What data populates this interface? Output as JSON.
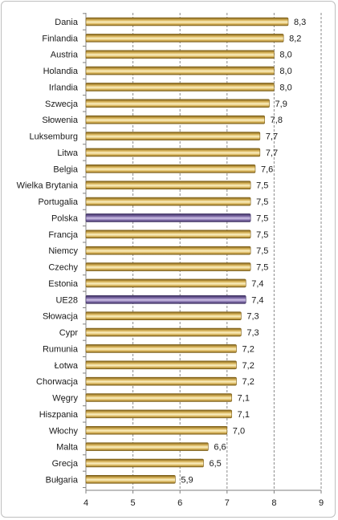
{
  "chart_data": {
    "type": "bar",
    "orientation": "horizontal",
    "categories": [
      "Dania",
      "Finlandia",
      "Austria",
      "Holandia",
      "Irlandia",
      "Szwecja",
      "Słowenia",
      "Luksemburg",
      "Litwa",
      "Belgia",
      "Wielka Brytania",
      "Portugalia",
      "Polska",
      "Francja",
      "Niemcy",
      "Czechy",
      "Estonia",
      "UE28",
      "Słowacja",
      "Cypr",
      "Rumunia",
      "Łotwa",
      "Chorwacja",
      "Węgry",
      "Hiszpania",
      "Włochy",
      "Malta",
      "Grecja",
      "Bułgaria"
    ],
    "values": [
      8.3,
      8.2,
      8.0,
      8.0,
      8.0,
      7.9,
      7.8,
      7.7,
      7.7,
      7.6,
      7.5,
      7.5,
      7.5,
      7.5,
      7.5,
      7.5,
      7.4,
      7.4,
      7.3,
      7.3,
      7.2,
      7.2,
      7.2,
      7.1,
      7.1,
      7.0,
      6.6,
      6.5,
      5.9
    ],
    "value_labels": [
      "8,3",
      "8,2",
      "8,0",
      "8,0",
      "8,0",
      "7,9",
      "7,8",
      "7,7",
      "7,7",
      "7,6",
      "7,5",
      "7,5",
      "7,5",
      "7,5",
      "7,5",
      "7,5",
      "7,4",
      "7,4",
      "7,3",
      "7,3",
      "7,2",
      "7,2",
      "7,2",
      "7,1",
      "7,1",
      "7,0",
      "6,6",
      "6,5",
      "5,9"
    ],
    "highlighted": [
      "Polska",
      "UE28"
    ],
    "xlim": [
      4,
      9
    ],
    "x_ticks": [
      4,
      5,
      6,
      7,
      8,
      9
    ],
    "grid": true,
    "title": "",
    "xlabel": "",
    "ylabel": ""
  },
  "colors": {
    "bar_main": "#d9b45a",
    "bar_dark": "#7a5c16",
    "bar_light": "#fbf0c2",
    "highlight_main": "#7d6aa6",
    "highlight_dark": "#3a2d5e",
    "highlight_light": "#cfc3e8",
    "grid": "#8a8a8a",
    "axis": "#7f7f7f"
  }
}
